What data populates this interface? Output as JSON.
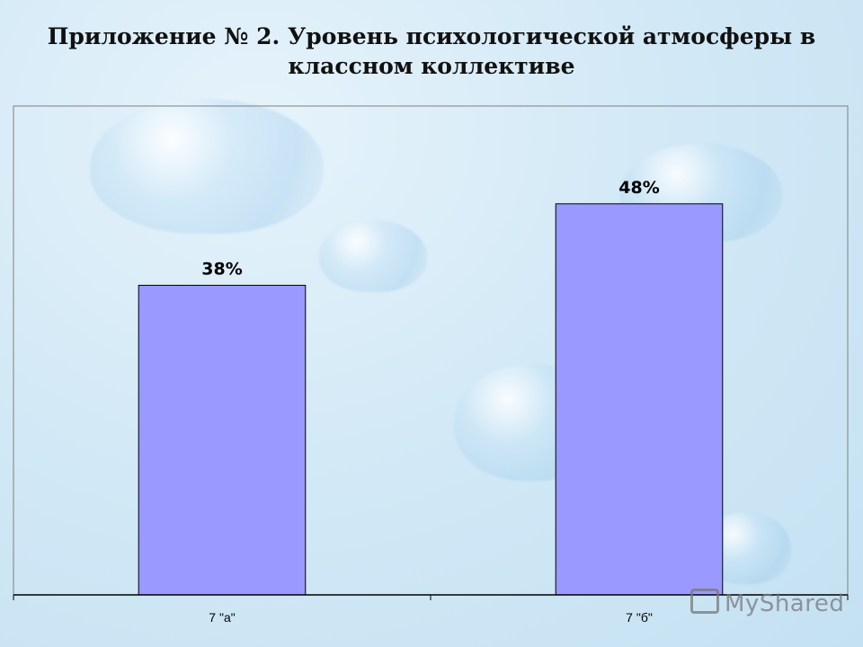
{
  "title_lines": [
    "Приложение № 2. Уровень психологической атмосферы в",
    "классном коллективе"
  ],
  "watermark": "MyShared",
  "colors": {
    "bar": "#9999ff",
    "axis": "#000000",
    "plot_border": "#808080"
  },
  "chart_data": {
    "type": "bar",
    "title": "Приложение № 2. Уровень психологической атмосферы в классном коллективе",
    "categories": [
      "7 \"а\"",
      "7 \"б\""
    ],
    "values": [
      38,
      48
    ],
    "data_labels": [
      "38%",
      "48%"
    ],
    "xlabel": "",
    "ylabel": "",
    "ylim": [
      0,
      60
    ],
    "grid": false,
    "legend": "none"
  }
}
